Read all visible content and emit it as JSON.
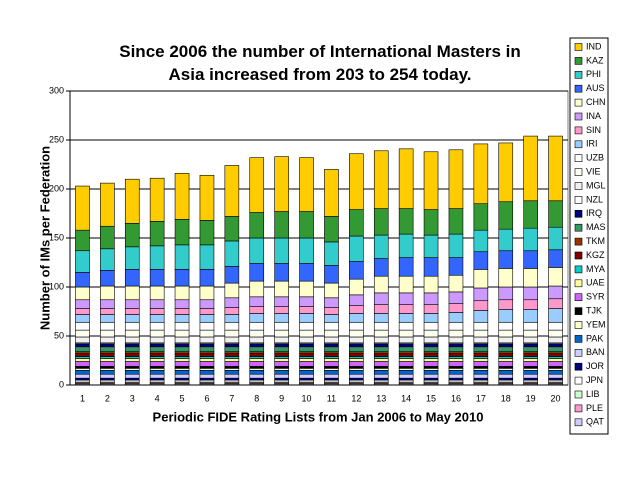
{
  "chart_data": {
    "type": "stacked-bar",
    "title": "Since 2006 the number of International Masters in Asia increased from 203 to 254 today.",
    "x_label": "Periodic FIDE Rating Lists from Jan 2006 to May 2010",
    "y_label": "Number of IMs per Federation",
    "categories": [
      "1",
      "2",
      "3",
      "4",
      "5",
      "6",
      "7",
      "8",
      "9",
      "10",
      "11",
      "12",
      "13",
      "14",
      "15",
      "16",
      "17",
      "18",
      "19",
      "20"
    ],
    "ylim": [
      0,
      300
    ],
    "yticks": [
      0,
      50,
      100,
      150,
      200,
      250,
      300
    ],
    "grid": true,
    "series": [
      {
        "name": "IND",
        "color": "#ffcc00",
        "values": [
          45,
          44,
          45,
          44,
          47,
          46,
          52,
          56,
          56,
          55,
          48,
          57,
          59,
          61,
          59,
          60,
          61,
          60,
          66,
          66
        ]
      },
      {
        "name": "KAZ",
        "color": "#339933",
        "values": [
          21,
          23,
          24,
          25,
          26,
          25,
          25,
          26,
          27,
          27,
          26,
          27,
          27,
          26,
          26,
          26,
          27,
          28,
          28,
          27
        ]
      },
      {
        "name": "PHI",
        "color": "#33cccc",
        "values": [
          22,
          22,
          23,
          24,
          25,
          25,
          26,
          26,
          26,
          26,
          24,
          26,
          24,
          24,
          23,
          24,
          22,
          22,
          23,
          23
        ]
      },
      {
        "name": "AUS",
        "color": "#3366ff",
        "values": [
          15,
          16,
          17,
          17,
          17,
          17,
          17,
          18,
          18,
          18,
          18,
          18,
          18,
          19,
          19,
          18,
          18,
          18,
          18,
          18
        ]
      },
      {
        "name": "CHN",
        "color": "#ffffcc",
        "values": [
          13,
          14,
          14,
          14,
          14,
          14,
          15,
          16,
          16,
          16,
          15,
          16,
          17,
          17,
          17,
          17,
          19,
          19,
          19,
          19
        ]
      },
      {
        "name": "INA",
        "color": "#cc99ff",
        "values": [
          9,
          9,
          9,
          9,
          9,
          9,
          10,
          10,
          10,
          10,
          10,
          11,
          12,
          12,
          12,
          12,
          13,
          13,
          13,
          13
        ]
      },
      {
        "name": "SIN",
        "color": "#ff99cc",
        "values": [
          6,
          6,
          6,
          6,
          6,
          6,
          7,
          7,
          7,
          7,
          7,
          8,
          9,
          9,
          9,
          9,
          10,
          10,
          10,
          10
        ]
      },
      {
        "name": "IRI",
        "color": "#99ccff",
        "values": [
          8,
          8,
          8,
          8,
          8,
          8,
          8,
          9,
          9,
          9,
          8,
          9,
          9,
          9,
          9,
          10,
          12,
          13,
          13,
          14
        ]
      },
      {
        "name": "UZB",
        "color": "#ffffff",
        "values": [
          8,
          8,
          8,
          8,
          8,
          8,
          8,
          8,
          8,
          8,
          8,
          8,
          8,
          8,
          8,
          8,
          8,
          8,
          8,
          8
        ]
      },
      {
        "name": "VIE",
        "color": "#fffff0",
        "values": [
          7,
          7,
          7,
          7,
          7,
          7,
          7,
          7,
          7,
          7,
          7,
          7,
          7,
          7,
          7,
          7,
          7,
          7,
          7,
          7
        ]
      },
      {
        "name": "MGL",
        "color": "#f0f0f0",
        "values": [
          6,
          6,
          6,
          6,
          6,
          6,
          6,
          6,
          6,
          6,
          6,
          6,
          6,
          6,
          6,
          6,
          6,
          6,
          6,
          6
        ]
      },
      {
        "name": "NZL",
        "color": "#ffffff",
        "values": [
          1,
          1,
          1,
          1,
          1,
          1,
          1,
          1,
          1,
          1,
          1,
          1,
          1,
          1,
          1,
          1,
          1,
          1,
          1,
          1
        ]
      },
      {
        "name": "IRQ",
        "color": "#000080",
        "values": [
          3,
          3,
          3,
          3,
          3,
          3,
          3,
          3,
          3,
          3,
          3,
          3,
          3,
          3,
          3,
          3,
          3,
          3,
          3,
          3
        ]
      },
      {
        "name": "MAS",
        "color": "#339966",
        "values": [
          5,
          5,
          5,
          5,
          5,
          5,
          5,
          5,
          5,
          5,
          5,
          5,
          5,
          5,
          5,
          5,
          5,
          5,
          5,
          5
        ]
      },
      {
        "name": "TKM",
        "color": "#993300",
        "values": [
          2,
          2,
          2,
          2,
          2,
          2,
          2,
          2,
          2,
          2,
          2,
          2,
          2,
          2,
          2,
          2,
          2,
          2,
          2,
          2
        ]
      },
      {
        "name": "KGZ",
        "color": "#800000",
        "values": [
          3,
          3,
          3,
          3,
          3,
          3,
          3,
          3,
          3,
          3,
          3,
          3,
          3,
          3,
          3,
          3,
          3,
          3,
          3,
          3
        ]
      },
      {
        "name": "MYA",
        "color": "#00cccc",
        "values": [
          2,
          2,
          2,
          2,
          2,
          2,
          2,
          2,
          2,
          2,
          2,
          2,
          2,
          2,
          2,
          2,
          2,
          2,
          2,
          2
        ]
      },
      {
        "name": "UAE",
        "color": "#ffff99",
        "values": [
          3,
          3,
          3,
          3,
          3,
          3,
          3,
          3,
          3,
          3,
          3,
          3,
          3,
          3,
          3,
          3,
          3,
          3,
          3,
          3
        ]
      },
      {
        "name": "SYR",
        "color": "#cc66ff",
        "values": [
          5,
          5,
          5,
          5,
          5,
          5,
          5,
          5,
          5,
          5,
          5,
          5,
          5,
          5,
          5,
          5,
          5,
          5,
          5,
          5
        ]
      },
      {
        "name": "TJK",
        "color": "#000000",
        "values": [
          2,
          2,
          2,
          2,
          2,
          2,
          2,
          2,
          2,
          2,
          2,
          2,
          2,
          2,
          2,
          2,
          2,
          2,
          2,
          2
        ]
      },
      {
        "name": "YEM",
        "color": "#ffffcc",
        "values": [
          2,
          2,
          2,
          2,
          2,
          2,
          2,
          2,
          2,
          2,
          2,
          2,
          2,
          2,
          2,
          2,
          2,
          2,
          2,
          2
        ]
      },
      {
        "name": "PAK",
        "color": "#0066cc",
        "values": [
          4,
          4,
          4,
          4,
          4,
          4,
          4,
          4,
          4,
          4,
          4,
          4,
          4,
          4,
          4,
          4,
          4,
          4,
          4,
          4
        ]
      },
      {
        "name": "BAN",
        "color": "#ccccff",
        "values": [
          4,
          4,
          4,
          4,
          4,
          4,
          4,
          4,
          4,
          4,
          4,
          4,
          4,
          4,
          4,
          4,
          4,
          4,
          4,
          4
        ]
      },
      {
        "name": "JOR",
        "color": "#000080",
        "values": [
          2,
          2,
          2,
          2,
          2,
          2,
          2,
          2,
          2,
          2,
          2,
          2,
          2,
          2,
          2,
          2,
          2,
          2,
          2,
          2
        ]
      },
      {
        "name": "JPN",
        "color": "#ffffff",
        "values": [
          2,
          2,
          2,
          2,
          2,
          2,
          2,
          2,
          2,
          2,
          2,
          2,
          2,
          2,
          2,
          2,
          2,
          2,
          2,
          2
        ]
      },
      {
        "name": "LIB",
        "color": "#ccffcc",
        "values": [
          1,
          1,
          1,
          1,
          1,
          1,
          1,
          1,
          1,
          1,
          1,
          1,
          1,
          1,
          1,
          1,
          1,
          1,
          1,
          1
        ]
      },
      {
        "name": "PLE",
        "color": "#ff99cc",
        "values": [
          1,
          1,
          1,
          1,
          1,
          1,
          1,
          1,
          1,
          1,
          1,
          1,
          1,
          1,
          1,
          1,
          1,
          1,
          1,
          1
        ]
      },
      {
        "name": "QAT",
        "color": "#ccccff",
        "values": [
          1,
          1,
          1,
          1,
          1,
          1,
          1,
          1,
          1,
          1,
          1,
          1,
          1,
          1,
          1,
          1,
          1,
          1,
          1,
          1
        ]
      }
    ]
  }
}
